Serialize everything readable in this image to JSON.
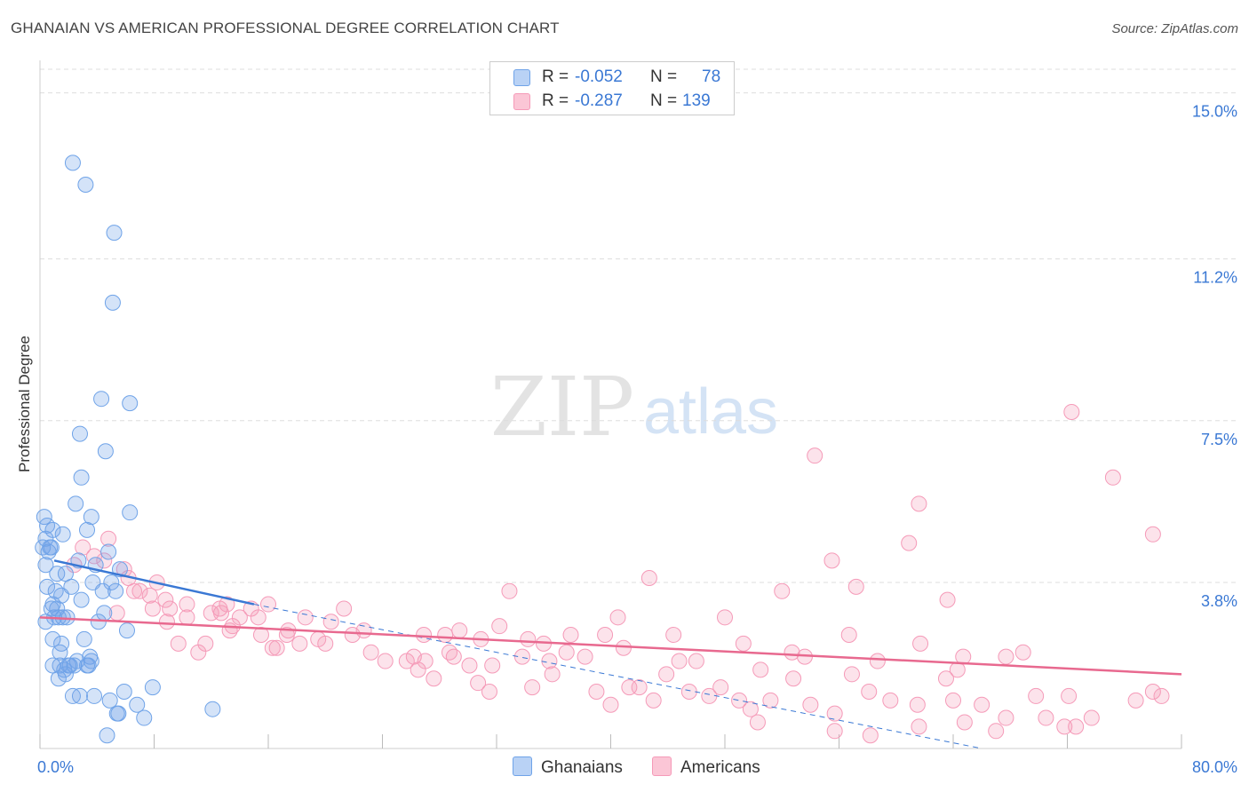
{
  "title": "GHANAIAN VS AMERICAN PROFESSIONAL DEGREE CORRELATION CHART",
  "source": "Source: ZipAtlas.com",
  "watermark": {
    "zip": "ZIP",
    "atlas": "atlas"
  },
  "colors": {
    "blue": "#6fa3e8",
    "blue_line": "#3a78d4",
    "pink": "#f59ab8",
    "pink_line": "#e8698f",
    "axis_text": "#3a78d4"
  },
  "legend_top": {
    "rows": [
      {
        "r_label": "R =",
        "r_value": "-0.052",
        "n_label": "N =",
        "n_value": "78"
      },
      {
        "r_label": "R =",
        "r_value": "-0.287",
        "n_label": "N =",
        "n_value": "139"
      }
    ]
  },
  "legend_bottom": {
    "ghanaians": "Ghanaians",
    "americans": "Americans"
  },
  "chart_data": {
    "type": "scatter",
    "title": "GHANAIAN VS AMERICAN PROFESSIONAL DEGREE CORRELATION CHART",
    "xlabel": "",
    "ylabel": "Professional Degree",
    "xlim": [
      0,
      80
    ],
    "ylim": [
      0,
      15.5
    ],
    "x_tick_labels": [
      "0.0%",
      "80.0%"
    ],
    "y_ticks": [
      3.8,
      7.5,
      11.2,
      15.0
    ],
    "y_tick_labels": [
      "3.8%",
      "7.5%",
      "11.2%",
      "15.0%"
    ],
    "grid": true,
    "series": [
      {
        "name": "Ghanaians",
        "r": -0.052,
        "n": 78,
        "trend": {
          "x": [
            1,
            15
          ],
          "y": [
            4.3,
            3.3
          ]
        },
        "trend_ext": {
          "x": [
            15,
            66
          ],
          "y": [
            3.3,
            0.0
          ]
        },
        "points": [
          [
            2.3,
            13.4
          ],
          [
            3.2,
            12.9
          ],
          [
            5.2,
            11.8
          ],
          [
            5.1,
            10.2
          ],
          [
            4.3,
            8.0
          ],
          [
            6.3,
            7.9
          ],
          [
            2.8,
            7.2
          ],
          [
            4.6,
            6.8
          ],
          [
            2.9,
            6.2
          ],
          [
            2.5,
            5.6
          ],
          [
            6.3,
            5.4
          ],
          [
            0.3,
            5.3
          ],
          [
            3.6,
            5.3
          ],
          [
            0.5,
            5.1
          ],
          [
            0.9,
            5.0
          ],
          [
            1.6,
            4.9
          ],
          [
            3.3,
            5.0
          ],
          [
            0.4,
            4.8
          ],
          [
            0.8,
            4.6
          ],
          [
            0.2,
            4.6
          ],
          [
            0.6,
            4.5
          ],
          [
            0.7,
            4.6
          ],
          [
            4.8,
            4.5
          ],
          [
            2.7,
            4.3
          ],
          [
            0.4,
            4.2
          ],
          [
            3.9,
            4.2
          ],
          [
            5.6,
            4.1
          ],
          [
            1.2,
            4.0
          ],
          [
            1.8,
            4.0
          ],
          [
            3.7,
            3.8
          ],
          [
            5.0,
            3.8
          ],
          [
            2.2,
            3.7
          ],
          [
            0.5,
            3.7
          ],
          [
            1.1,
            3.6
          ],
          [
            4.4,
            3.6
          ],
          [
            5.3,
            3.6
          ],
          [
            1.5,
            3.5
          ],
          [
            2.9,
            3.4
          ],
          [
            0.9,
            3.3
          ],
          [
            1.2,
            3.2
          ],
          [
            0.8,
            3.2
          ],
          [
            1.6,
            3.0
          ],
          [
            4.5,
            3.1
          ],
          [
            1.3,
            3.0
          ],
          [
            1.9,
            3.0
          ],
          [
            0.4,
            2.9
          ],
          [
            1.0,
            3.0
          ],
          [
            4.1,
            2.9
          ],
          [
            6.1,
            2.7
          ],
          [
            1.5,
            2.4
          ],
          [
            3.1,
            2.5
          ],
          [
            0.9,
            2.5
          ],
          [
            1.4,
            2.2
          ],
          [
            3.5,
            2.1
          ],
          [
            3.3,
            1.9
          ],
          [
            3.6,
            2.0
          ],
          [
            2.6,
            2.0
          ],
          [
            2.0,
            1.9
          ],
          [
            1.4,
            1.9
          ],
          [
            0.9,
            1.9
          ],
          [
            2.4,
            1.9
          ],
          [
            1.7,
            1.8
          ],
          [
            2.1,
            1.9
          ],
          [
            3.4,
            1.9
          ],
          [
            1.8,
            1.7
          ],
          [
            1.3,
            1.6
          ],
          [
            2.8,
            1.2
          ],
          [
            2.3,
            1.2
          ],
          [
            3.8,
            1.2
          ],
          [
            4.9,
            1.1
          ],
          [
            5.4,
            0.8
          ],
          [
            5.5,
            0.8
          ],
          [
            7.3,
            0.7
          ],
          [
            12.1,
            0.9
          ],
          [
            4.7,
            0.3
          ],
          [
            5.9,
            1.3
          ],
          [
            6.8,
            1.0
          ],
          [
            7.9,
            1.4
          ]
        ]
      },
      {
        "name": "Americans",
        "r": -0.287,
        "n": 139,
        "trend": {
          "x": [
            0,
            80
          ],
          "y": [
            3.0,
            1.7
          ]
        },
        "points": [
          [
            72.3,
            7.7
          ],
          [
            54.3,
            6.7
          ],
          [
            75.2,
            6.2
          ],
          [
            61.6,
            5.6
          ],
          [
            78.0,
            4.9
          ],
          [
            60.9,
            4.7
          ],
          [
            55.5,
            4.3
          ],
          [
            42.7,
            3.9
          ],
          [
            57.2,
            3.7
          ],
          [
            52.0,
            3.6
          ],
          [
            63.6,
            3.4
          ],
          [
            32.9,
            3.6
          ],
          [
            48.0,
            3.0
          ],
          [
            40.5,
            3.0
          ],
          [
            32.2,
            2.8
          ],
          [
            56.7,
            2.6
          ],
          [
            61.7,
            2.4
          ],
          [
            39.6,
            2.6
          ],
          [
            44.4,
            2.6
          ],
          [
            37.2,
            2.6
          ],
          [
            34.2,
            2.5
          ],
          [
            35.3,
            2.4
          ],
          [
            28.4,
            2.6
          ],
          [
            29.4,
            2.7
          ],
          [
            26.9,
            2.6
          ],
          [
            30.9,
            2.5
          ],
          [
            22.7,
            2.7
          ],
          [
            21.9,
            2.6
          ],
          [
            20.0,
            2.4
          ],
          [
            18.2,
            2.4
          ],
          [
            17.3,
            2.6
          ],
          [
            11.1,
            2.2
          ],
          [
            13.3,
            2.7
          ],
          [
            16.6,
            2.3
          ],
          [
            25.7,
            2.0
          ],
          [
            24.2,
            2.0
          ],
          [
            26.2,
            2.1
          ],
          [
            27.0,
            2.0
          ],
          [
            29.0,
            2.1
          ],
          [
            30.1,
            1.9
          ],
          [
            31.7,
            1.9
          ],
          [
            33.8,
            2.1
          ],
          [
            35.7,
            2.0
          ],
          [
            38.2,
            2.1
          ],
          [
            36.9,
            2.2
          ],
          [
            40.9,
            2.3
          ],
          [
            44.8,
            2.0
          ],
          [
            46.0,
            2.0
          ],
          [
            49.3,
            2.4
          ],
          [
            50.5,
            1.8
          ],
          [
            52.7,
            2.2
          ],
          [
            53.6,
            2.1
          ],
          [
            58.7,
            2.0
          ],
          [
            64.3,
            1.8
          ],
          [
            67.7,
            2.1
          ],
          [
            68.9,
            2.2
          ],
          [
            64.7,
            2.1
          ],
          [
            8.2,
            3.8
          ],
          [
            6.6,
            3.6
          ],
          [
            9.1,
            3.2
          ],
          [
            10.3,
            3.0
          ],
          [
            8.9,
            2.9
          ],
          [
            7.9,
            3.2
          ],
          [
            5.4,
            3.1
          ],
          [
            4.8,
            4.8
          ],
          [
            3.8,
            4.4
          ],
          [
            4.5,
            4.3
          ],
          [
            3.0,
            4.6
          ],
          [
            2.4,
            4.2
          ],
          [
            5.9,
            4.1
          ],
          [
            6.2,
            3.9
          ],
          [
            7.0,
            3.6
          ],
          [
            7.7,
            3.5
          ],
          [
            8.8,
            3.4
          ],
          [
            10.3,
            3.3
          ],
          [
            12.0,
            3.1
          ],
          [
            12.7,
            3.1
          ],
          [
            13.5,
            2.8
          ],
          [
            14.0,
            3.0
          ],
          [
            15.3,
            3.0
          ],
          [
            16.0,
            3.3
          ],
          [
            17.4,
            2.7
          ],
          [
            18.6,
            3.0
          ],
          [
            19.5,
            2.5
          ],
          [
            20.4,
            2.9
          ],
          [
            21.3,
            3.2
          ],
          [
            23.2,
            2.2
          ],
          [
            13.1,
            3.3
          ],
          [
            14.8,
            3.2
          ],
          [
            15.5,
            2.6
          ],
          [
            16.3,
            2.3
          ],
          [
            9.7,
            2.4
          ],
          [
            11.6,
            2.4
          ],
          [
            12.6,
            3.2
          ],
          [
            26.5,
            1.8
          ],
          [
            27.6,
            1.6
          ],
          [
            28.7,
            2.2
          ],
          [
            30.7,
            1.5
          ],
          [
            31.5,
            1.3
          ],
          [
            34.5,
            1.4
          ],
          [
            35.9,
            1.7
          ],
          [
            39.0,
            1.3
          ],
          [
            40.0,
            1.0
          ],
          [
            41.3,
            1.4
          ],
          [
            42.0,
            1.4
          ],
          [
            43.0,
            1.1
          ],
          [
            43.9,
            1.7
          ],
          [
            45.5,
            1.3
          ],
          [
            46.9,
            1.2
          ],
          [
            47.7,
            1.4
          ],
          [
            49.0,
            1.1
          ],
          [
            49.8,
            0.9
          ],
          [
            51.2,
            1.1
          ],
          [
            52.8,
            1.6
          ],
          [
            54.0,
            1.0
          ],
          [
            55.7,
            0.8
          ],
          [
            56.9,
            1.7
          ],
          [
            58.1,
            1.3
          ],
          [
            59.6,
            1.1
          ],
          [
            61.5,
            1.0
          ],
          [
            63.5,
            1.6
          ],
          [
            64.0,
            1.1
          ],
          [
            66.0,
            1.0
          ],
          [
            67.7,
            0.7
          ],
          [
            69.8,
            1.2
          ],
          [
            70.5,
            0.7
          ],
          [
            72.1,
            1.2
          ],
          [
            73.7,
            0.7
          ],
          [
            78.0,
            1.3
          ],
          [
            76.8,
            1.1
          ],
          [
            50.3,
            0.6
          ],
          [
            55.7,
            0.4
          ],
          [
            58.2,
            0.3
          ],
          [
            61.6,
            0.5
          ],
          [
            64.8,
            0.6
          ],
          [
            67.0,
            0.4
          ],
          [
            71.8,
            0.5
          ],
          [
            72.6,
            0.5
          ],
          [
            78.6,
            1.2
          ]
        ]
      }
    ]
  }
}
